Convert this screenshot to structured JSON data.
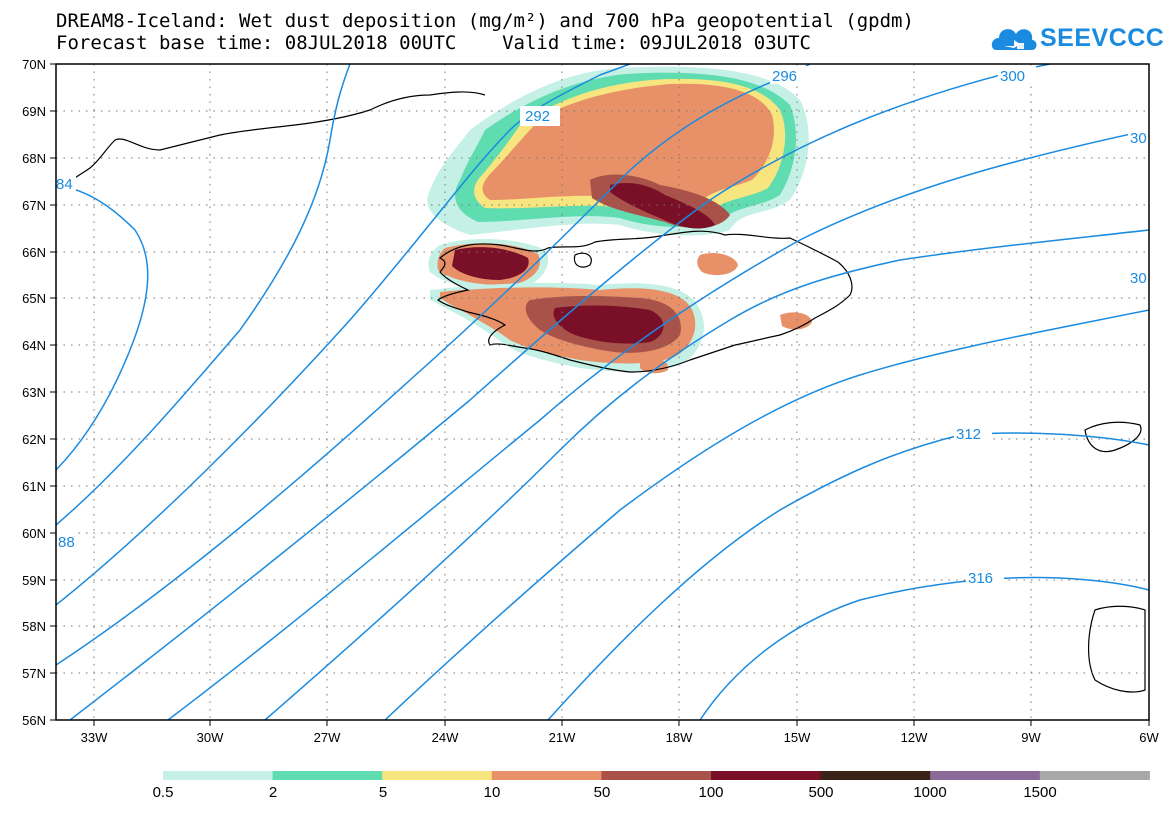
{
  "title_line1": "DREAM8-Iceland: Wet dust deposition (mg/m²) and 700 hPa geopotential (gpdm)",
  "title_line2": "Forecast base time: 08JUL2018 00UTC    Valid time: 09JUL2018 03UTC",
  "logo": {
    "text": "SEEVCCC",
    "icon": "cloud-icon",
    "color": "#1a8be0"
  },
  "map": {
    "lat_labels": [
      "70N",
      "69N",
      "68N",
      "67N",
      "66N",
      "65N",
      "64N",
      "63N",
      "62N",
      "61N",
      "60N",
      "59N",
      "58N",
      "57N",
      "56N"
    ],
    "lon_labels": [
      "33W",
      "30W",
      "27W",
      "24W",
      "21W",
      "18W",
      "15W",
      "12W",
      "9W",
      "6W"
    ],
    "lon_range": [
      "34.5W",
      "6W"
    ],
    "lat_range": [
      "56N",
      "70N"
    ],
    "gridlines": "dotted",
    "contour_color": "#1a8be0",
    "contour_labels": [
      "292",
      "296",
      "300",
      "30",
      "30",
      "312",
      "316",
      "88",
      "84"
    ]
  },
  "legend": {
    "labels": [
      "0.5",
      "2",
      "5",
      "10",
      "50",
      "100",
      "500",
      "1000",
      "1500"
    ],
    "colors": [
      "#c4f0e6",
      "#5fdcb0",
      "#f7e680",
      "#e89068",
      "#a8524a",
      "#7a0f28",
      "#3a2418",
      "#8a6a98",
      "#a8a8a8"
    ]
  }
}
